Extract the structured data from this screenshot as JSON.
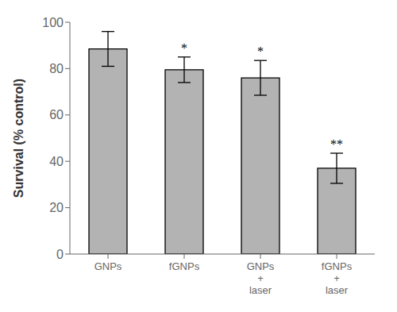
{
  "chart_data": {
    "type": "bar",
    "categories": [
      "GNPs",
      "fGNPs",
      "GNPs\n+\nlaser",
      "fGNPs\n+\nlaser"
    ],
    "values": [
      88.5,
      79.5,
      76.0,
      37.0
    ],
    "errors": [
      7.5,
      5.5,
      7.5,
      6.5
    ],
    "significance": [
      null,
      "*",
      "*",
      "**"
    ],
    "color": "#b3b3b3",
    "ylabel": "Survival (% control)",
    "ylim": [
      0,
      100
    ],
    "yticks": [
      0,
      20,
      40,
      60,
      80,
      100
    ],
    "grid": false
  }
}
